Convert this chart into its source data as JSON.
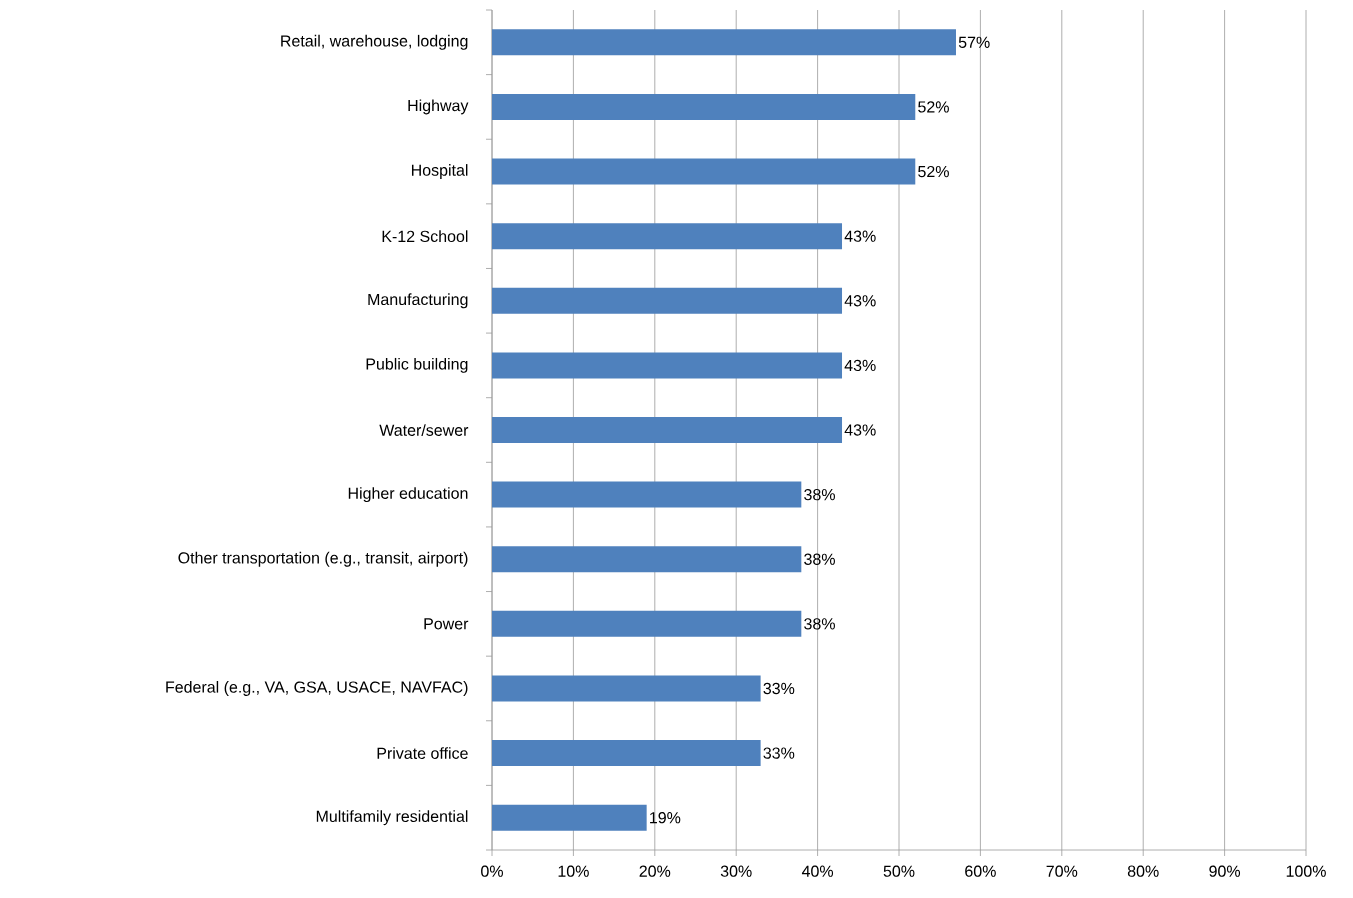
{
  "chart_data": {
    "type": "bar",
    "orientation": "horizontal",
    "categories": [
      "Retail, warehouse, lodging",
      "Highway",
      "Hospital",
      "K-12 School",
      "Manufacturing",
      "Public building",
      "Water/sewer",
      "Higher education",
      "Other transportation (e.g., transit, airport)",
      "Power",
      "Federal (e.g., VA, GSA, USACE, NAVFAC)",
      "Private office",
      "Multifamily residential"
    ],
    "values": [
      57,
      52,
      52,
      43,
      43,
      43,
      43,
      38,
      38,
      38,
      33,
      33,
      19
    ],
    "value_labels": [
      "57%",
      "52%",
      "52%",
      "43%",
      "43%",
      "43%",
      "43%",
      "38%",
      "38%",
      "38%",
      "33%",
      "33%",
      "19%"
    ],
    "color": "#4f81bd",
    "xlim": [
      0,
      100
    ],
    "xticks": [
      {
        "value": 0,
        "label": "0%"
      },
      {
        "value": 10,
        "label": "10%"
      },
      {
        "value": 20,
        "label": "20%"
      },
      {
        "value": 30,
        "label": "30%"
      },
      {
        "value": 40,
        "label": "40%"
      },
      {
        "value": 50,
        "label": "50%"
      },
      {
        "value": 60,
        "label": "60%"
      },
      {
        "value": 70,
        "label": "70%"
      },
      {
        "value": 80,
        "label": "80%"
      },
      {
        "value": 90,
        "label": "90%"
      },
      {
        "value": 100,
        "label": "100%"
      }
    ],
    "grid": "x"
  }
}
